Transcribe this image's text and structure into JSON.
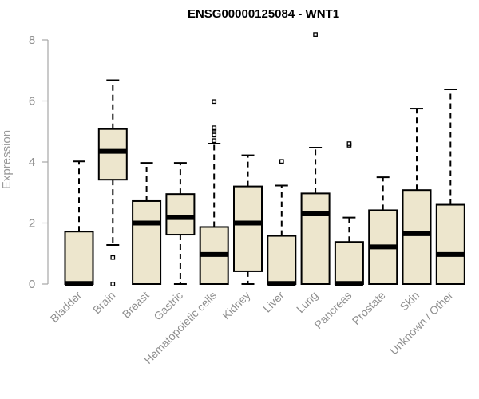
{
  "chart_data": {
    "type": "box",
    "title": "ENSG00000125084 - WNT1",
    "xlabel": "",
    "ylabel": "Expression",
    "ylim": [
      0,
      8
    ],
    "yticks": [
      0,
      2,
      4,
      6,
      8
    ],
    "grid": false,
    "box_fill": "#ede6cd",
    "box_stroke": "#000000",
    "categories": [
      "Bladder",
      "Brain",
      "Breast",
      "Gastric",
      "Hematopoietic cells",
      "Kidney",
      "Liver",
      "Lung",
      "Pancreas",
      "Prostate",
      "Skin",
      "Unknown / Other"
    ],
    "boxes": [
      {
        "min": 0,
        "q1": 0,
        "median": 0.02,
        "q3": 1.72,
        "max": 4.02,
        "outliers": []
      },
      {
        "min": 1.28,
        "q1": 3.42,
        "median": 4.35,
        "q3": 5.08,
        "max": 6.68,
        "outliers": [
          0.87,
          0
        ]
      },
      {
        "min": 0,
        "q1": 0,
        "median": 2.0,
        "q3": 2.72,
        "max": 3.97,
        "outliers": []
      },
      {
        "min": 0,
        "q1": 1.62,
        "median": 2.18,
        "q3": 2.95,
        "max": 3.97,
        "outliers": []
      },
      {
        "min": 0,
        "q1": 0,
        "median": 0.97,
        "q3": 1.87,
        "max": 4.6,
        "outliers": [
          4.7,
          4.88,
          5.0,
          5.08,
          5.12,
          5.98
        ]
      },
      {
        "min": 0,
        "q1": 0.42,
        "median": 2.0,
        "q3": 3.2,
        "max": 4.22,
        "outliers": []
      },
      {
        "min": 0,
        "q1": 0,
        "median": 0.02,
        "q3": 1.58,
        "max": 3.23,
        "outliers": [
          4.02
        ]
      },
      {
        "min": 0,
        "q1": 0,
        "median": 2.3,
        "q3": 2.97,
        "max": 4.47,
        "outliers": [
          8.18
        ]
      },
      {
        "min": 0,
        "q1": 0,
        "median": 0.02,
        "q3": 1.38,
        "max": 2.18,
        "outliers": [
          4.55,
          4.6
        ]
      },
      {
        "min": 0,
        "q1": 0,
        "median": 1.22,
        "q3": 2.42,
        "max": 3.5,
        "outliers": []
      },
      {
        "min": 0,
        "q1": 0,
        "median": 1.65,
        "q3": 3.08,
        "max": 5.75,
        "outliers": []
      },
      {
        "min": 0,
        "q1": 0,
        "median": 0.97,
        "q3": 2.6,
        "max": 6.38,
        "outliers": []
      }
    ]
  }
}
